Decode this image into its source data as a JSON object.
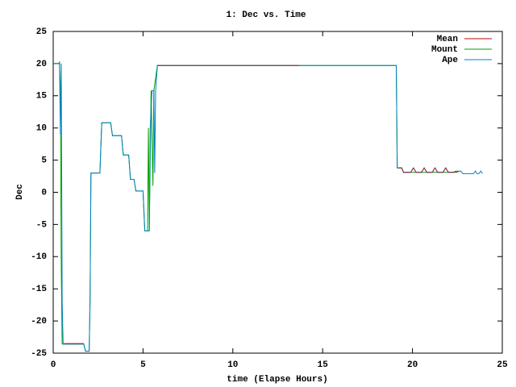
{
  "chart_data": {
    "type": "line",
    "title": "1: Dec vs. Time",
    "x_label": "time (Elapse Hours)",
    "y_label": "Dec",
    "xlim": [
      0,
      25
    ],
    "xticks": [
      0,
      5,
      10,
      15,
      20,
      25
    ],
    "ylim": [
      -25,
      25
    ],
    "yticks": [
      -25,
      -20,
      -15,
      -10,
      -5,
      0,
      5,
      10,
      15,
      20,
      25
    ],
    "legend": "top-right",
    "series": [
      {
        "name": "Mount",
        "color": "#00a000",
        "x": [
          0,
          0.3,
          0.35,
          0.4,
          0.45,
          0.5,
          1.7,
          1.8,
          2.0,
          2.05,
          2.1,
          2.6,
          2.7,
          3.2,
          3.3,
          3.8,
          3.9,
          4.2,
          4.3,
          4.5,
          4.6,
          5.0,
          5.1,
          5.25,
          5.3,
          5.35,
          5.45,
          5.55,
          5.6,
          5.8,
          19.1,
          19.15,
          19.4,
          19.5,
          22.5
        ],
        "values": [
          20,
          20,
          20.2,
          15.8,
          -12,
          -23.6,
          -23.6,
          -24.7,
          -24.7,
          -17,
          3,
          3,
          10.8,
          10.8,
          8.8,
          8.8,
          5.8,
          5.8,
          2,
          2,
          0.2,
          0.2,
          -6,
          -6,
          10,
          -6,
          15.8,
          1,
          15.8,
          19.7,
          19.7,
          3.8,
          3.8,
          3.1,
          3.1
        ]
      },
      {
        "name": "Ape",
        "color": "#0080c0",
        "x": [
          0,
          0.3,
          0.35,
          0.4,
          0.45,
          0.5,
          0.55,
          1.7,
          1.8,
          2.0,
          2.05,
          2.1,
          2.6,
          2.7,
          3.2,
          3.3,
          3.8,
          3.9,
          4.2,
          4.3,
          4.5,
          4.6,
          5.0,
          5.1,
          5.35,
          5.4,
          5.5,
          5.6,
          5.65,
          5.7,
          5.8,
          19.1,
          19.15,
          19.4,
          19.5,
          19.9,
          20.05,
          20.2,
          20.5,
          20.65,
          20.8,
          21.1,
          21.25,
          21.4,
          21.7,
          21.85,
          22.0,
          22.3,
          22.4,
          22.7,
          22.8,
          23.4,
          23.5,
          23.6,
          23.7,
          23.8,
          23.9
        ],
        "values": [
          20,
          20,
          20.2,
          9,
          20,
          -17,
          -23.6,
          -23.6,
          -24.7,
          -24.7,
          -17,
          3,
          3,
          10.8,
          10.8,
          8.8,
          8.8,
          5.8,
          5.8,
          2,
          2,
          0.2,
          0.2,
          -6,
          -6,
          10,
          15.8,
          15.8,
          3,
          15.8,
          19.7,
          19.7,
          3.8,
          3.8,
          3.1,
          3.1,
          3.8,
          3.1,
          3.1,
          3.8,
          3.1,
          3.1,
          3.8,
          3.1,
          3.1,
          3.8,
          3.1,
          3.1,
          3.3,
          3.3,
          2.9,
          2.9,
          3.3,
          2.9,
          2.9,
          3.3,
          2.9
        ]
      },
      {
        "name": "Mean",
        "color": "#c00000",
        "x": [
          0.6,
          1.7,
          3,
          5.8,
          13.7,
          15,
          19.2,
          19.4,
          19.5,
          19.9,
          20.05,
          20.2,
          20.5,
          20.65,
          20.8,
          21.1,
          21.25,
          21.4,
          21.7,
          21.85,
          22.0,
          22.6
        ],
        "values": [
          -23.5,
          -23.5,
          null,
          19.7,
          19.7,
          null,
          3.8,
          3.8,
          3.1,
          3.1,
          3.8,
          3.1,
          3.1,
          3.8,
          3.1,
          3.1,
          3.8,
          3.1,
          3.1,
          3.8,
          3.1,
          3.2
        ]
      }
    ]
  }
}
